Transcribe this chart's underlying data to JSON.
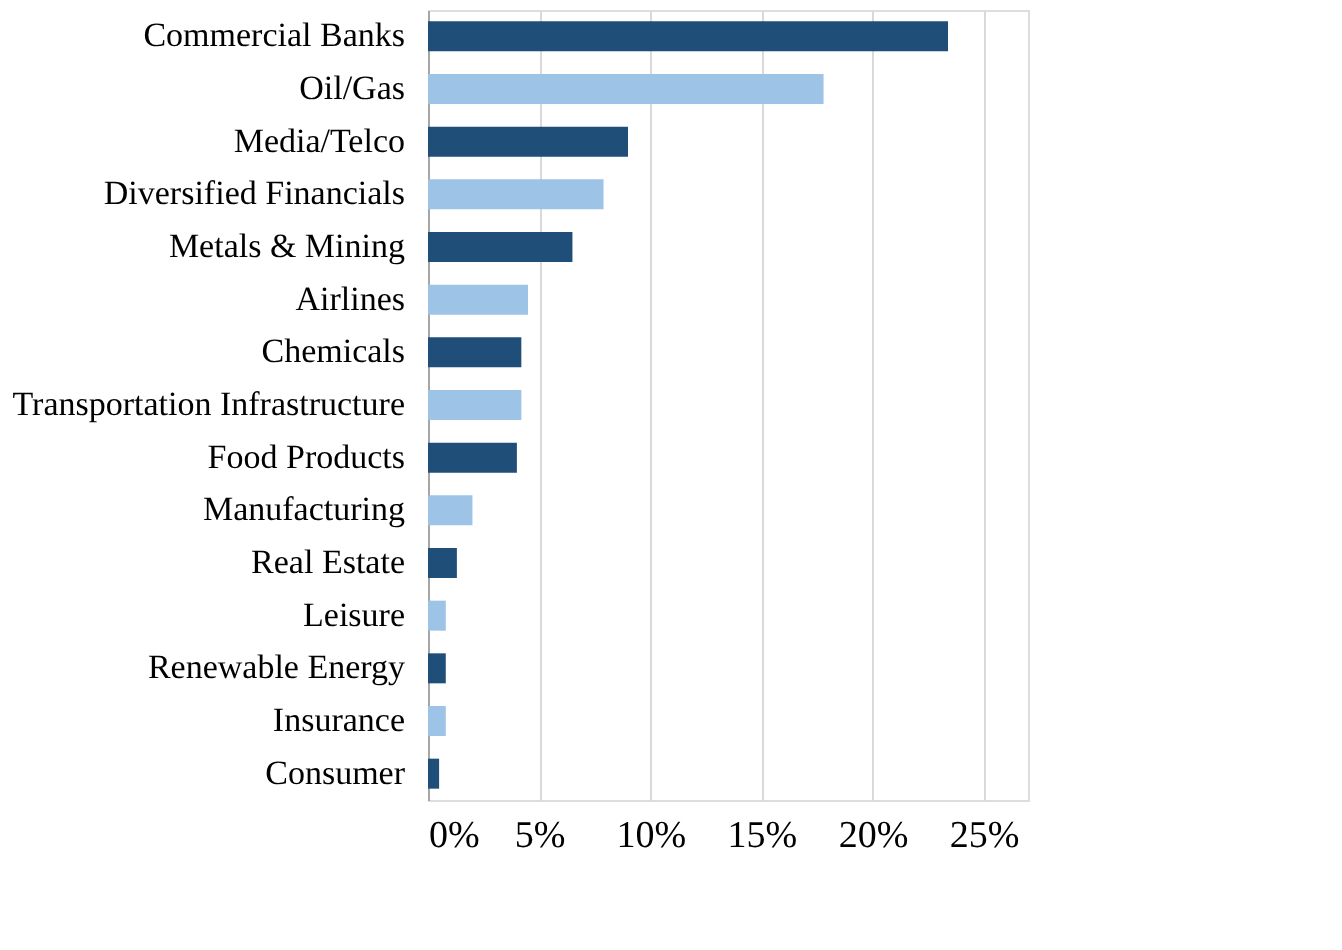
{
  "chart_data": {
    "type": "bar",
    "orientation": "horizontal",
    "categories": [
      "Commercial Banks",
      "Oil/Gas",
      "Media/Telco",
      "Diversified Financials",
      "Metals & Mining",
      "Airlines",
      "Chemicals",
      "Transportation Infrastructure",
      "Food Products",
      "Manufacturing",
      "Real Estate",
      "Leisure",
      "Renewable Energy",
      "Insurance",
      "Consumer"
    ],
    "values": [
      23.4,
      17.8,
      9.0,
      7.9,
      6.5,
      4.5,
      4.2,
      4.2,
      4.0,
      2.0,
      1.3,
      0.8,
      0.8,
      0.8,
      0.5
    ],
    "colors": [
      "#1f4e79",
      "#9dc3e6",
      "#1f4e79",
      "#9dc3e6",
      "#1f4e79",
      "#9dc3e6",
      "#1f4e79",
      "#9dc3e6",
      "#1f4e79",
      "#9dc3e6",
      "#1f4e79",
      "#9dc3e6",
      "#1f4e79",
      "#9dc3e6",
      "#1f4e79"
    ],
    "xlim": [
      0,
      27
    ],
    "xticks": [
      {
        "value": 0,
        "label": "0%"
      },
      {
        "value": 5,
        "label": "5%"
      },
      {
        "value": 10,
        "label": "10%"
      },
      {
        "value": 15,
        "label": "15%"
      },
      {
        "value": 20,
        "label": "20%"
      },
      {
        "value": 25,
        "label": "25%"
      }
    ],
    "grid": "x"
  }
}
